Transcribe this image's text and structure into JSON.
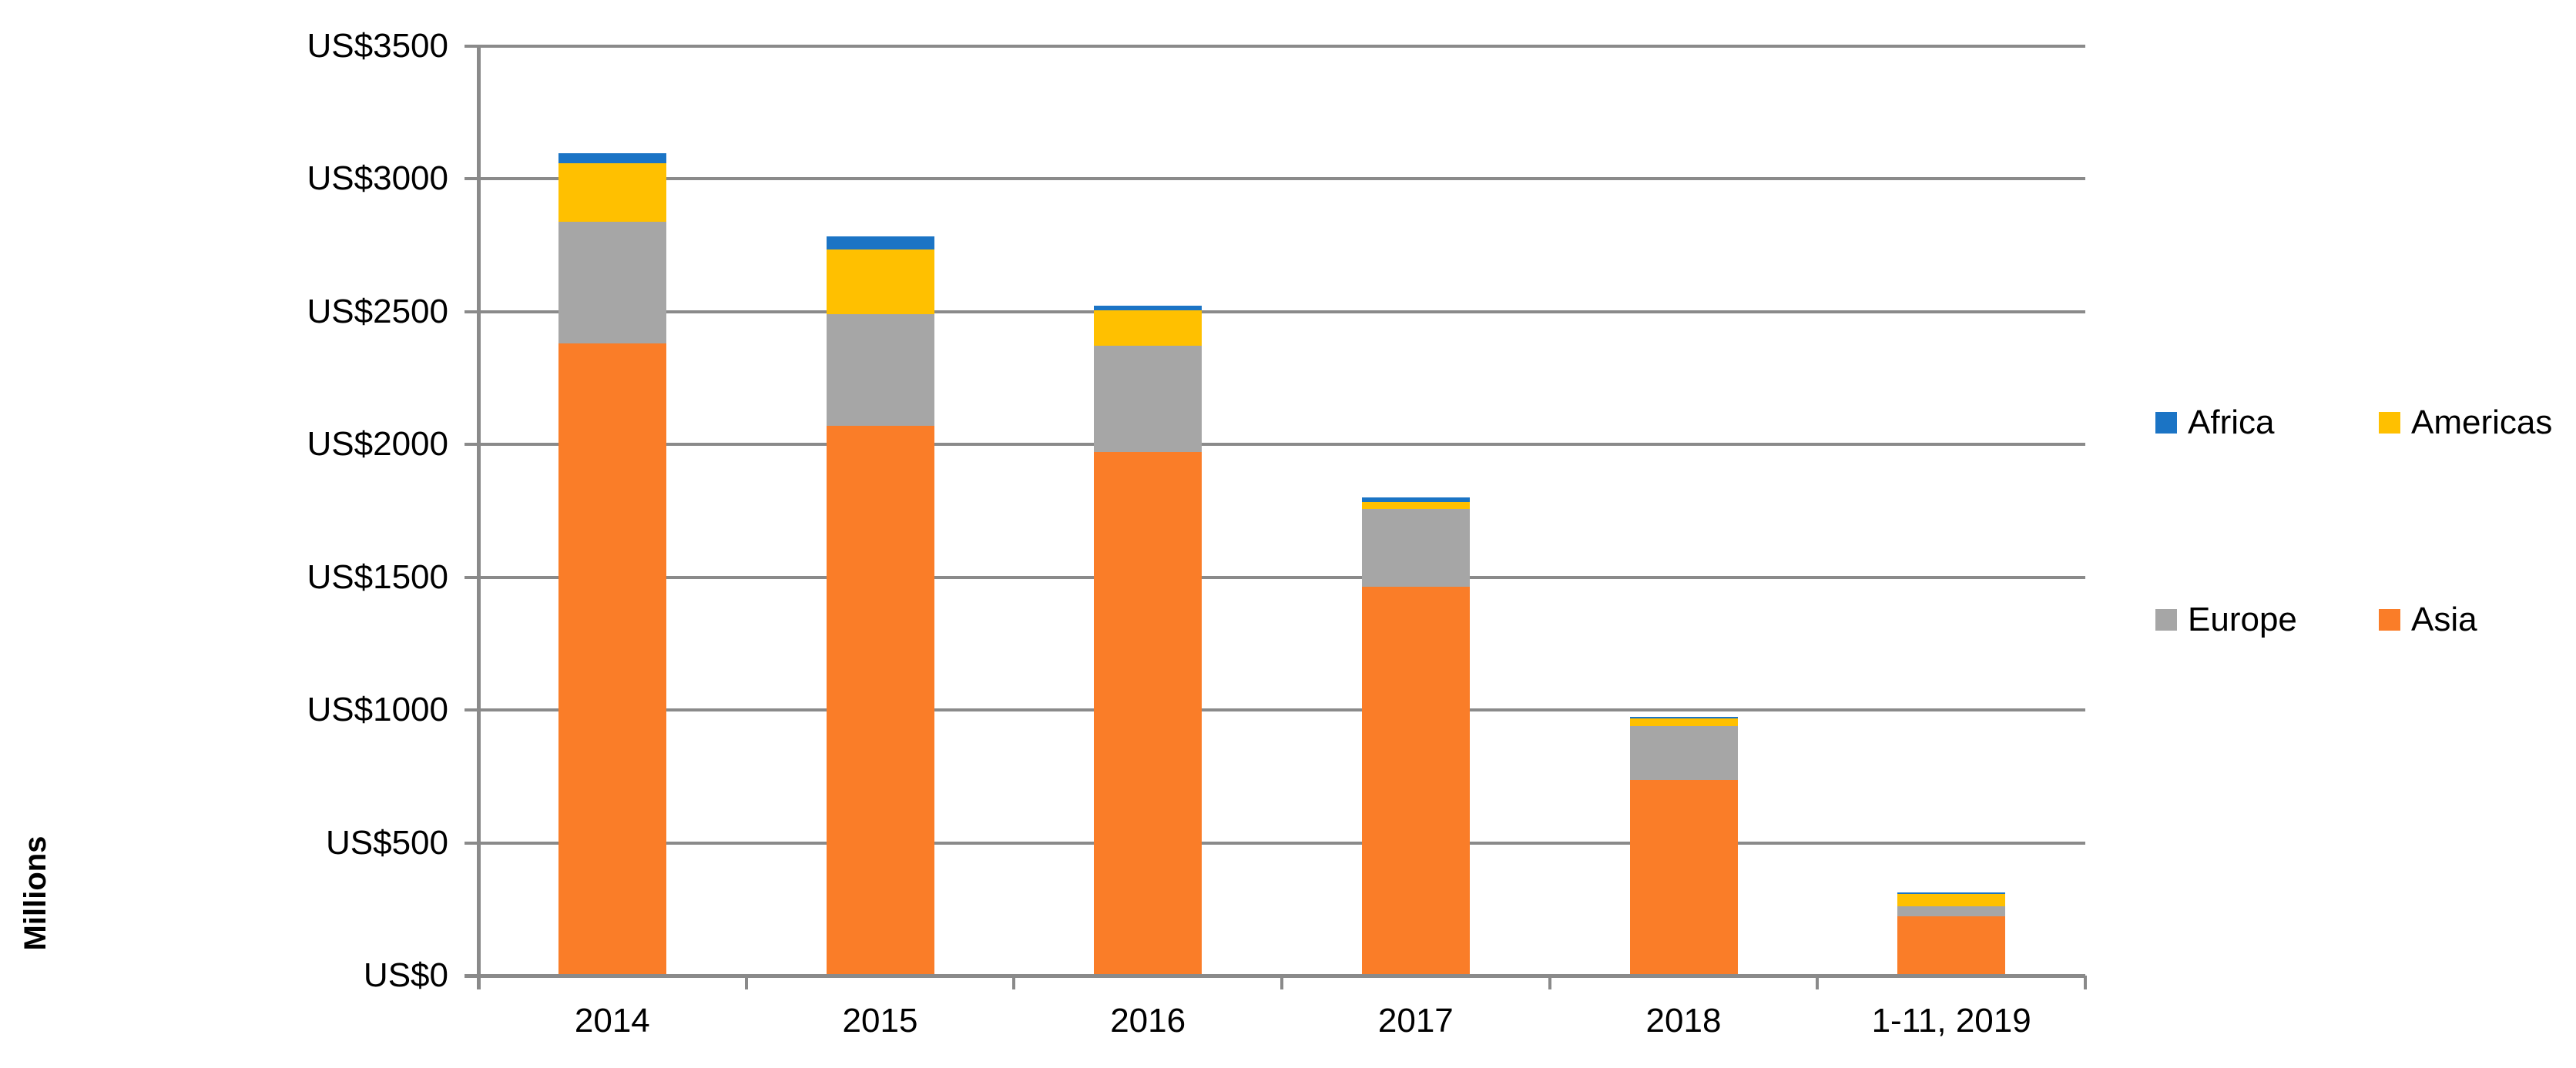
{
  "chart_data": {
    "type": "bar",
    "stacked": true,
    "title": "",
    "ylabel": "Millions",
    "xlabel": "",
    "ylim": [
      0,
      3500
    ],
    "grid": true,
    "legend_position": "right",
    "categories": [
      "2014",
      "2015",
      "2016",
      "2017",
      "2018",
      "1-11, 2019"
    ],
    "series": [
      {
        "name": "Africa",
        "color": "#1B74C5",
        "values": [
          38,
          49,
          16,
          18,
          7,
          8
        ]
      },
      {
        "name": "Americas",
        "color": "#FFC000",
        "values": [
          220,
          244,
          135,
          27,
          28,
          46
        ]
      },
      {
        "name": "Europe",
        "color": "#A6A6A6",
        "values": [
          458,
          419,
          398,
          293,
          203,
          37
        ]
      },
      {
        "name": "Asia",
        "color": "#FA7D28",
        "values": [
          2380,
          2071,
          1973,
          1464,
          737,
          223
        ]
      }
    ],
    "stack_order_bottom_to_top": [
      "Asia",
      "Europe",
      "Americas",
      "Africa"
    ],
    "totals": [
      3096,
      2783,
      2522,
      1802,
      975,
      314
    ],
    "y_ticks": [
      {
        "value": 3500,
        "label": "US$3500"
      },
      {
        "value": 3000,
        "label": "US$3000"
      },
      {
        "value": 2500,
        "label": "US$2500"
      },
      {
        "value": 2000,
        "label": "US$2000"
      },
      {
        "value": 1500,
        "label": "US$1500"
      },
      {
        "value": 1000,
        "label": "US$1000"
      },
      {
        "value": 500,
        "label": "US$500"
      },
      {
        "value": 0,
        "label": "US$0"
      }
    ],
    "axis_color": "#8A8A8A",
    "text_color": "#000000"
  },
  "legend": {
    "items": [
      {
        "label": "Africa",
        "color": "#1B74C5"
      },
      {
        "label": "Americas",
        "color": "#FFC000"
      },
      {
        "label": "Europe",
        "color": "#A6A6A6"
      },
      {
        "label": "Asia",
        "color": "#FA7D28"
      }
    ]
  }
}
